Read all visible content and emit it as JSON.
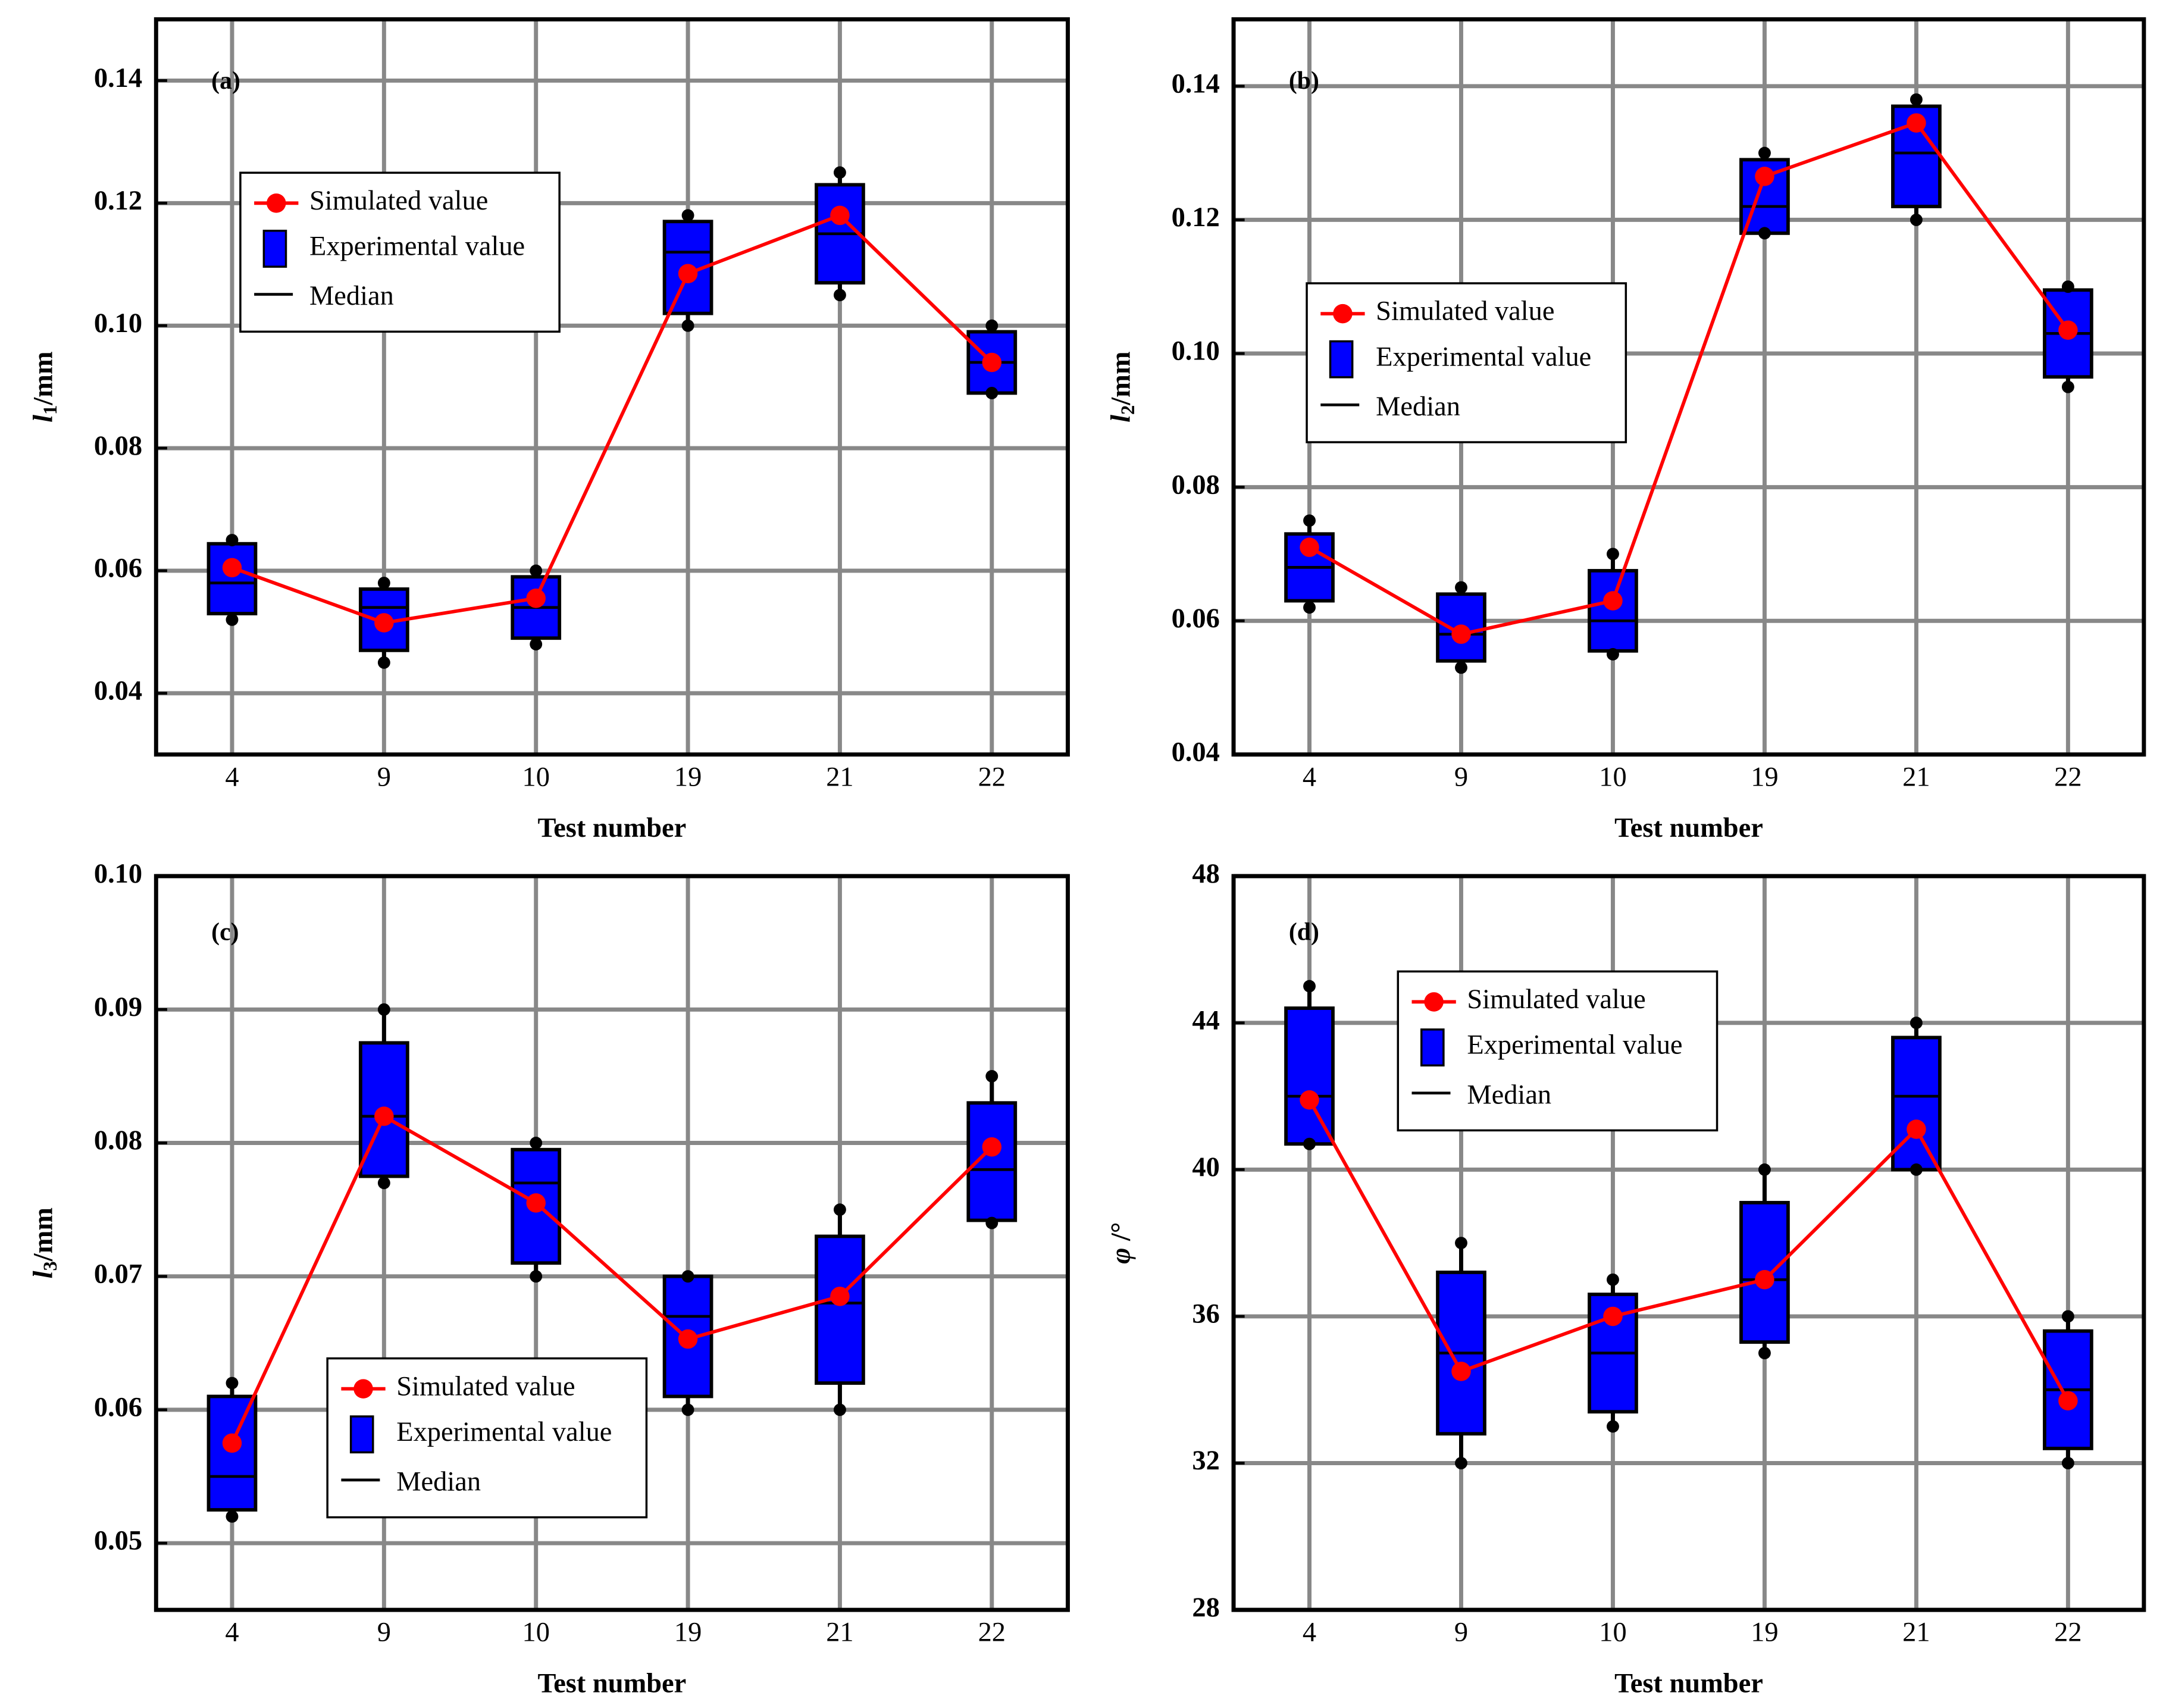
{
  "chart_data": [
    {
      "type": "box",
      "panel_label": "(a)",
      "xlabel": "Test number",
      "ylabel": {
        "symbol": "l",
        "subscript": "1",
        "unit": "/mm"
      },
      "categories": [
        "4",
        "9",
        "10",
        "19",
        "21",
        "22"
      ],
      "boxes": {
        "name": "Experimental value",
        "color": "#0000ff",
        "min": [
          0.052,
          0.045,
          0.048,
          0.1,
          0.105,
          0.089
        ],
        "q1": [
          0.053,
          0.047,
          0.049,
          0.102,
          0.107,
          0.089
        ],
        "median": [
          0.058,
          0.054,
          0.054,
          0.112,
          0.115,
          0.094
        ],
        "q3": [
          0.0644,
          0.057,
          0.059,
          0.117,
          0.123,
          0.099
        ],
        "max": [
          0.065,
          0.058,
          0.06,
          0.118,
          0.125,
          0.1
        ]
      },
      "line": {
        "name": "Simulated value",
        "color": "#ff0000",
        "values": [
          0.0605,
          0.0515,
          0.0555,
          0.1085,
          0.118,
          0.094
        ]
      },
      "median_label": "Median",
      "legend": "upper left",
      "ylim": [
        0.03,
        0.15
      ],
      "yticks": [
        0.04,
        0.06,
        0.08,
        {
          "value": 0.1,
          "label": "0.10"
        },
        0.12,
        0.14
      ],
      "grid": true
    },
    {
      "type": "box",
      "panel_label": "(b)",
      "xlabel": "Test number",
      "ylabel": {
        "symbol": "l",
        "subscript": "2",
        "unit": "/mm"
      },
      "categories": [
        "4",
        "9",
        "10",
        "19",
        "21",
        "22"
      ],
      "boxes": {
        "name": "Experimental value",
        "color": "#0000ff",
        "min": [
          0.062,
          0.053,
          0.055,
          0.118,
          0.12,
          0.095
        ],
        "q1": [
          0.063,
          0.054,
          0.0555,
          0.118,
          0.122,
          0.0965
        ],
        "median": [
          0.068,
          0.058,
          0.06,
          0.122,
          0.13,
          0.103
        ],
        "q3": [
          0.073,
          0.064,
          0.0675,
          0.129,
          0.137,
          0.1095
        ],
        "max": [
          0.075,
          0.065,
          0.07,
          0.13,
          0.138,
          0.11
        ]
      },
      "line": {
        "name": "Simulated value",
        "color": "#ff0000",
        "values": [
          0.071,
          0.058,
          0.063,
          0.1265,
          0.1345,
          0.1035
        ]
      },
      "median_label": "Median",
      "legend": "center left",
      "ylim": [
        0.04,
        0.15
      ],
      "yticks": [
        0.04,
        0.06,
        0.08,
        {
          "value": 0.1,
          "label": "0.10"
        },
        0.12,
        0.14
      ],
      "grid": true
    },
    {
      "type": "box",
      "panel_label": "(c)",
      "xlabel": "Test number",
      "ylabel": {
        "symbol": "l",
        "subscript": "3",
        "unit": "/mm"
      },
      "categories": [
        "4",
        "9",
        "10",
        "19",
        "21",
        "22"
      ],
      "boxes": {
        "name": "Experimental value",
        "color": "#0000ff",
        "min": [
          0.052,
          0.077,
          0.07,
          0.06,
          0.06,
          0.074
        ],
        "q1": [
          0.0525,
          0.0775,
          0.071,
          0.061,
          0.062,
          0.0742
        ],
        "median": [
          0.055,
          0.082,
          0.077,
          0.067,
          0.068,
          0.078
        ],
        "q3": [
          0.061,
          0.0875,
          0.0795,
          0.07,
          0.073,
          0.083
        ],
        "max": [
          0.062,
          0.09,
          0.08,
          0.07,
          0.075,
          0.085
        ]
      },
      "line": {
        "name": "Simulated value",
        "color": "#ff0000",
        "values": [
          0.0575,
          0.082,
          0.0755,
          0.0653,
          0.0685,
          0.0797
        ]
      },
      "median_label": "Median",
      "legend": "lower center",
      "ylim": [
        0.045,
        0.1
      ],
      "yticks": [
        0.05,
        0.06,
        0.07,
        0.08,
        0.09,
        {
          "value": 0.1,
          "label": "0.10"
        }
      ],
      "grid": true
    },
    {
      "type": "box",
      "panel_label": "(d)",
      "xlabel": "Test number",
      "ylabel": {
        "symbol": "φ",
        "subscript": "",
        "unit": " /°"
      },
      "categories": [
        "4",
        "9",
        "10",
        "19",
        "21",
        "22"
      ],
      "boxes": {
        "name": "Experimental value",
        "color": "#0000ff",
        "min": [
          40.7,
          32,
          33,
          35,
          40,
          32
        ],
        "q1": [
          40.7,
          32.8,
          33.4,
          35.3,
          40,
          32.4
        ],
        "median": [
          42,
          35,
          35,
          37,
          42,
          34
        ],
        "q3": [
          44.4,
          37.2,
          36.6,
          39.1,
          43.6,
          35.6
        ],
        "max": [
          45,
          38,
          37,
          40,
          44,
          36
        ]
      },
      "line": {
        "name": "Simulated value",
        "color": "#ff0000",
        "values": [
          41.9,
          34.5,
          36,
          37,
          41.1,
          33.7
        ]
      },
      "median_label": "Median",
      "legend": "upper center",
      "ylim": [
        28,
        48
      ],
      "yticks": [
        28,
        32,
        36,
        40,
        44,
        48
      ],
      "grid": true
    }
  ]
}
